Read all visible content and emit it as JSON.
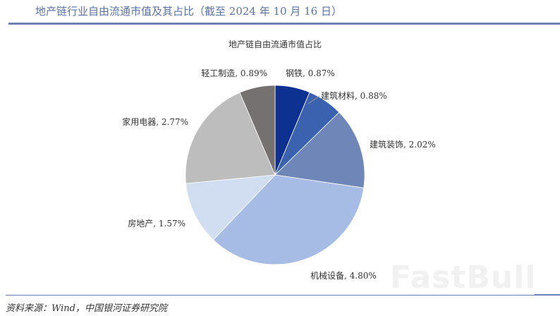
{
  "header": {
    "title": "地产链行业自由流通市值及其占比（截至 2024 年 10 月 16 日）"
  },
  "footer": {
    "source": "资料来源：Wind，中国银河证券研究院"
  },
  "watermark": "FastBull",
  "chart_data": {
    "type": "pie",
    "title": "地产链自由流通市值占比",
    "categories": [
      "钢铁",
      "建筑材料",
      "建筑装饰",
      "机械设备",
      "房地产",
      "家用电器",
      "轻工制造"
    ],
    "values": [
      0.87,
      0.88,
      2.02,
      4.8,
      1.57,
      2.77,
      0.89
    ],
    "unit": "%",
    "labels": [
      "钢铁, 0.87%",
      "建筑材料, 0.88%",
      "建筑装饰, 2.02%",
      "机械设备, 4.80%",
      "房地产, 1.57%",
      "家用电器, 2.77%",
      "轻工制造, 0.89%"
    ],
    "colors": [
      "#0c3190",
      "#3a62ae",
      "#6e86b8",
      "#a7bce4",
      "#d1def2",
      "#bdbdbd",
      "#757171"
    ],
    "start_angle": "12 o'clock, clockwise",
    "legend": "none (data labels on slices)"
  }
}
